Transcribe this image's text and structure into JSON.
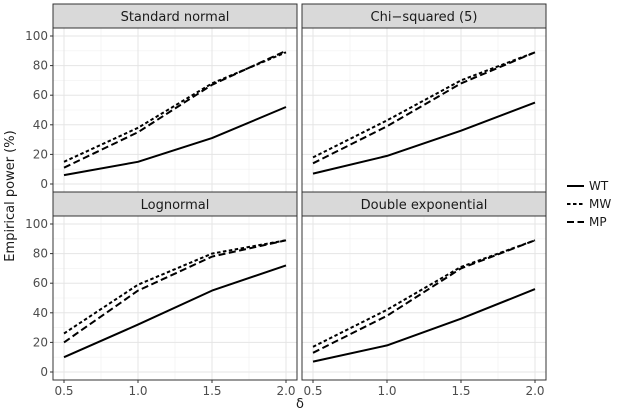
{
  "chart_data": {
    "type": "line",
    "ylabel": "Empirical power (%)",
    "xlabel": "δ",
    "x": [
      0.5,
      1.0,
      1.5,
      2.0
    ],
    "xticks": [
      "0.5",
      "1.0",
      "1.5",
      "2.0"
    ],
    "xlim": [
      0.5,
      2.0
    ],
    "ylim": [
      0,
      100
    ],
    "yticks": [
      "0",
      "20",
      "40",
      "60",
      "80",
      "100"
    ],
    "grid": true,
    "legend_position": "right",
    "legend": [
      {
        "name": "WT",
        "dash": "solid"
      },
      {
        "name": "MW",
        "dash": "dotted"
      },
      {
        "name": "MP",
        "dash": "dashed"
      }
    ],
    "panels": [
      {
        "title": "Standard normal",
        "series": [
          {
            "name": "WT",
            "values": [
              6,
              15,
              31,
              52
            ]
          },
          {
            "name": "MW",
            "values": [
              15,
              38,
              68,
              89
            ]
          },
          {
            "name": "MP",
            "values": [
              11,
              35,
              67,
              90
            ]
          }
        ]
      },
      {
        "title": "Chi−squared (5)",
        "series": [
          {
            "name": "WT",
            "values": [
              7,
              19,
              36,
              55
            ]
          },
          {
            "name": "MW",
            "values": [
              18,
              43,
              70,
              89
            ]
          },
          {
            "name": "MP",
            "values": [
              14,
              39,
              68,
              89
            ]
          }
        ]
      },
      {
        "title": "Lognormal",
        "series": [
          {
            "name": "WT",
            "values": [
              10,
              32,
              55,
              72
            ]
          },
          {
            "name": "MW",
            "values": [
              26,
              59,
              80,
              89
            ]
          },
          {
            "name": "MP",
            "values": [
              20,
              55,
              78,
              89
            ]
          }
        ]
      },
      {
        "title": "Double exponential",
        "series": [
          {
            "name": "WT",
            "values": [
              7,
              18,
              36,
              56
            ]
          },
          {
            "name": "MW",
            "values": [
              17,
              42,
              71,
              89
            ]
          },
          {
            "name": "MP",
            "values": [
              13,
              38,
              70,
              89
            ]
          }
        ]
      }
    ]
  }
}
